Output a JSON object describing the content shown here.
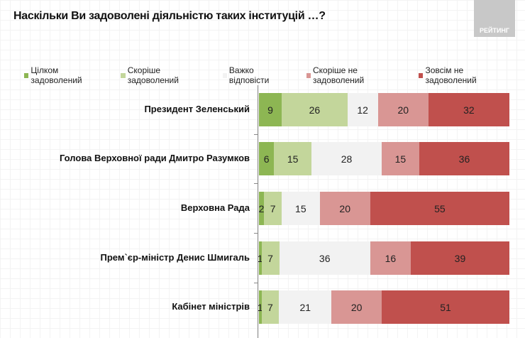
{
  "header": {
    "title": "Наскільки Ви задоволені діяльністю таких інституцій …?",
    "logo_text": "РЕЙТИНГ"
  },
  "chart_data": {
    "type": "bar",
    "orientation": "horizontal",
    "stacked": true,
    "title": "Наскільки Ви задоволені діяльністю таких інституцій …?",
    "categories": [
      "Президент Зеленський",
      "Голова Верховної ради Дмитро Разумков",
      "Верховна Рада",
      "Прем`єр-міністр Денис Шмигаль",
      "Кабінет міністрів"
    ],
    "series": [
      {
        "name": "Цілком задоволений",
        "color": "#8db653",
        "values": [
          9,
          6,
          2,
          1,
          1
        ]
      },
      {
        "name": "Скоріше задоволений",
        "color": "#c3d69b",
        "values": [
          26,
          15,
          7,
          7,
          7
        ]
      },
      {
        "name": "Важко відповісти",
        "color": "#f2f2f2",
        "values": [
          12,
          28,
          15,
          36,
          21
        ]
      },
      {
        "name": "Скоріше не задоволений",
        "color": "#d99694",
        "values": [
          20,
          15,
          20,
          16,
          20
        ]
      },
      {
        "name": "Зовсім не задоволений",
        "color": "#c0504d",
        "values": [
          32,
          36,
          55,
          39,
          51
        ]
      }
    ],
    "legend": "top",
    "xlim": [
      0,
      100
    ]
  }
}
